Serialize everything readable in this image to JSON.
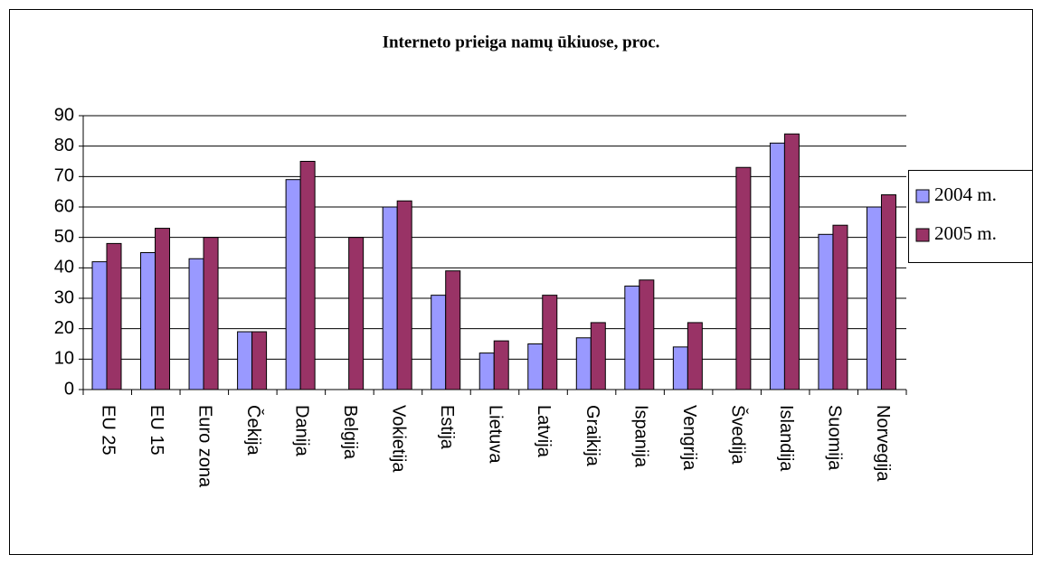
{
  "chart_data": {
    "type": "bar",
    "title": "Interneto prieiga namų ūkiuose, proc.",
    "categories": [
      "EU 25",
      "EU 15",
      "Euro zona",
      "Čekija",
      "Danija",
      "Belgija",
      "Vokietija",
      "Estija",
      "Lietuva",
      "Latvija",
      "Graikija",
      "Ispanija",
      "Vengrija",
      "Švedija",
      "Islandija",
      "Suomija",
      "Norvegija"
    ],
    "series": [
      {
        "name": "2004 m.",
        "color": "#9999ff",
        "values": [
          42,
          45,
          43,
          19,
          69,
          null,
          60,
          31,
          12,
          15,
          17,
          34,
          14,
          null,
          81,
          51,
          60
        ]
      },
      {
        "name": "2005 m.",
        "color": "#993366",
        "values": [
          48,
          53,
          50,
          19,
          75,
          50,
          62,
          39,
          16,
          31,
          22,
          36,
          22,
          73,
          84,
          54,
          64
        ]
      }
    ],
    "ylim": [
      0,
      90
    ],
    "yticks": [
      0,
      10,
      20,
      30,
      40,
      50,
      60,
      70,
      80,
      90
    ],
    "grid": true,
    "legend": "right"
  }
}
